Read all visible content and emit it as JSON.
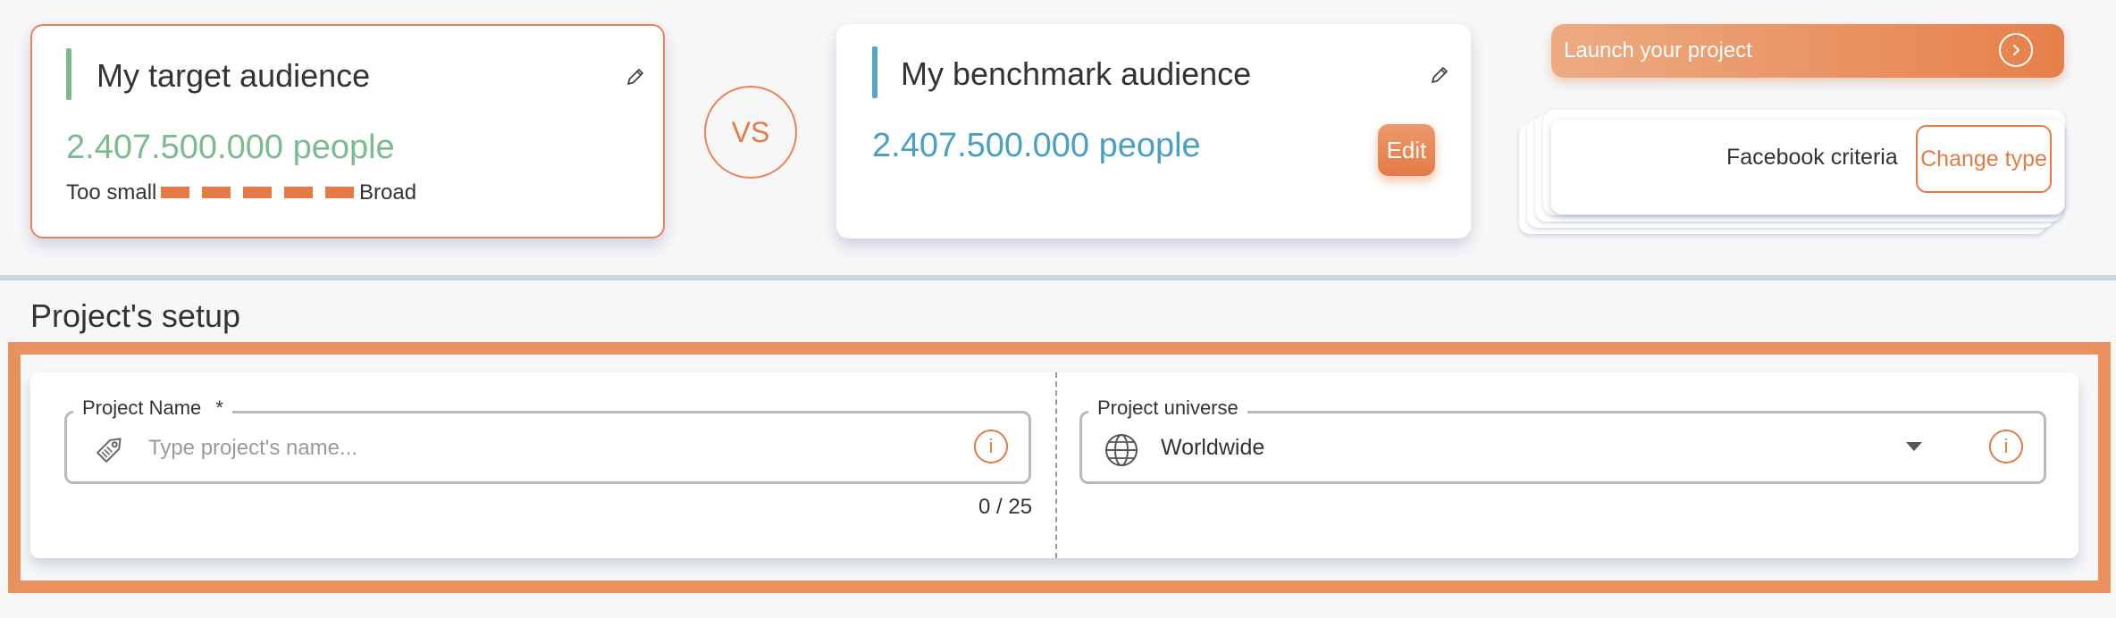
{
  "target": {
    "title": "My target audience",
    "people": "2.407.500.000 people",
    "range_min_label": "Too small",
    "range_max_label": "Broad",
    "accent_color": "#7dba8e",
    "people_color": "#7dba8e"
  },
  "vs_label": "VS",
  "benchmark": {
    "title": "My benchmark audience",
    "people": "2.407.500.000 people",
    "edit_label": "Edit",
    "accent_color": "#58a6c6",
    "people_color": "#4aa0c0"
  },
  "launch": {
    "label": "Launch your project",
    "icon": "chevron-right-circle-icon"
  },
  "criteria": {
    "label": "Facebook criteria",
    "change_type_label": "Change type"
  },
  "setup": {
    "title": "Project's setup",
    "project_name": {
      "legend": "Project Name",
      "required_mark": "*",
      "placeholder": "Type project's name...",
      "counter": "0 / 25",
      "icon": "tag-icon"
    },
    "project_universe": {
      "legend": "Project universe",
      "value": "Worldwide",
      "icon": "globe-icon"
    },
    "info_glyph": "i"
  },
  "colors": {
    "brand_orange": "#e47a45",
    "highlight_orange": "#e9925f"
  }
}
